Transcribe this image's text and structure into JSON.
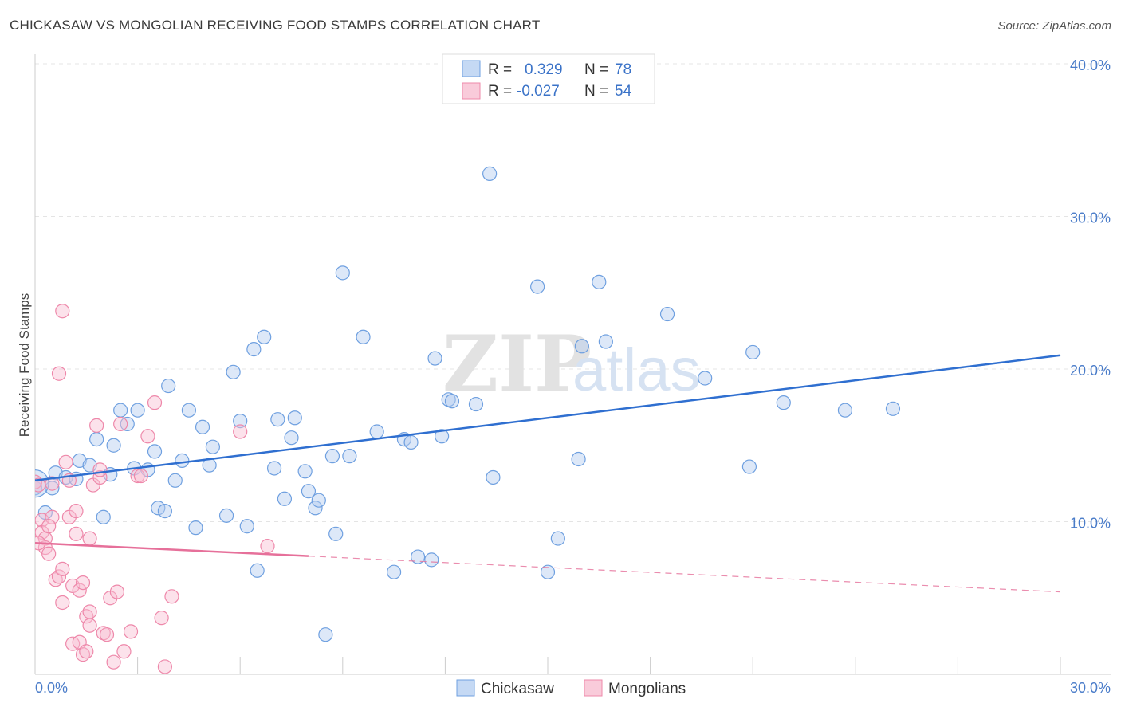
{
  "header": {
    "title": "CHICKASAW VS MONGOLIAN RECEIVING FOOD STAMPS CORRELATION CHART",
    "source": "Source: ZipAtlas.com"
  },
  "watermark": {
    "zip": "ZIP",
    "atlas": "atlas"
  },
  "legend": {
    "r_label": "R =",
    "n_label": "N =",
    "items": [
      {
        "name": "Chickasaw",
        "r": "0.329",
        "n": "78",
        "color": "#6fa0e0"
      },
      {
        "name": "Mongolians",
        "r": "-0.027",
        "n": "54",
        "color": "#ee88aa"
      }
    ]
  },
  "chart_data": {
    "type": "scatter",
    "xlabel": "",
    "ylabel": "Receiving Food Stamps",
    "xlim": [
      0,
      30
    ],
    "ylim": [
      0,
      40
    ],
    "x_tick_labels": [
      {
        "value": 0,
        "label": "0.0%"
      },
      {
        "value": 30,
        "label": "30.0%"
      }
    ],
    "y_tick_labels": [
      {
        "value": 10,
        "label": "10.0%"
      },
      {
        "value": 20,
        "label": "20.0%"
      },
      {
        "value": 30,
        "label": "30.0%"
      },
      {
        "value": 40,
        "label": "40.0%"
      }
    ],
    "grid": true,
    "legend_position": "top-center",
    "series": [
      {
        "name": "Chickasaw",
        "color": "#6fa0e0",
        "trend": {
          "x": [
            0,
            30
          ],
          "y": [
            12.7,
            20.9
          ],
          "dashed_from": null
        },
        "points": [
          [
            0.0,
            12.2
          ],
          [
            0.3,
            10.6
          ],
          [
            0.5,
            12.2
          ],
          [
            0.6,
            13.2
          ],
          [
            0.9,
            12.9
          ],
          [
            1.3,
            14.0
          ],
          [
            1.2,
            12.8
          ],
          [
            1.6,
            13.7
          ],
          [
            1.8,
            15.4
          ],
          [
            2.0,
            10.3
          ],
          [
            2.2,
            13.1
          ],
          [
            2.3,
            15.0
          ],
          [
            2.5,
            17.3
          ],
          [
            2.7,
            16.4
          ],
          [
            2.9,
            13.5
          ],
          [
            3.0,
            17.3
          ],
          [
            3.3,
            13.4
          ],
          [
            3.5,
            14.6
          ],
          [
            3.6,
            10.9
          ],
          [
            3.8,
            10.7
          ],
          [
            3.9,
            18.9
          ],
          [
            4.1,
            12.7
          ],
          [
            4.3,
            14.0
          ],
          [
            4.5,
            17.3
          ],
          [
            4.7,
            9.6
          ],
          [
            4.9,
            16.2
          ],
          [
            5.1,
            13.7
          ],
          [
            5.2,
            14.9
          ],
          [
            5.6,
            10.4
          ],
          [
            5.8,
            19.8
          ],
          [
            6.0,
            16.6
          ],
          [
            6.2,
            9.7
          ],
          [
            6.4,
            21.3
          ],
          [
            6.5,
            6.8
          ],
          [
            6.7,
            22.1
          ],
          [
            7.0,
            13.5
          ],
          [
            7.1,
            16.7
          ],
          [
            7.3,
            11.5
          ],
          [
            7.5,
            15.5
          ],
          [
            7.6,
            16.8
          ],
          [
            7.9,
            13.3
          ],
          [
            8.0,
            12.0
          ],
          [
            8.2,
            10.9
          ],
          [
            8.3,
            11.4
          ],
          [
            8.5,
            2.6
          ],
          [
            8.7,
            14.3
          ],
          [
            8.8,
            9.2
          ],
          [
            9.0,
            26.3
          ],
          [
            9.2,
            14.3
          ],
          [
            9.6,
            22.1
          ],
          [
            10.0,
            15.9
          ],
          [
            10.5,
            6.7
          ],
          [
            10.8,
            15.4
          ],
          [
            11.0,
            15.2
          ],
          [
            11.2,
            7.7
          ],
          [
            11.6,
            7.5
          ],
          [
            11.7,
            20.7
          ],
          [
            11.9,
            15.6
          ],
          [
            12.1,
            18.0
          ],
          [
            12.2,
            17.9
          ],
          [
            12.9,
            17.7
          ],
          [
            13.3,
            32.8
          ],
          [
            13.4,
            12.9
          ],
          [
            14.7,
            25.4
          ],
          [
            15.0,
            6.7
          ],
          [
            15.3,
            8.9
          ],
          [
            15.9,
            14.1
          ],
          [
            16.0,
            21.5
          ],
          [
            16.5,
            25.7
          ],
          [
            16.7,
            21.8
          ],
          [
            18.5,
            23.6
          ],
          [
            19.6,
            19.4
          ],
          [
            20.9,
            13.6
          ],
          [
            21.0,
            21.1
          ],
          [
            21.9,
            17.8
          ],
          [
            23.7,
            17.3
          ],
          [
            25.1,
            17.4
          ],
          [
            0.0,
            12.5
          ]
        ]
      },
      {
        "name": "Mongolians",
        "color": "#ee88aa",
        "trend": {
          "x": [
            0,
            30
          ],
          "y": [
            8.6,
            5.4
          ],
          "dashed_from": 8
        },
        "points": [
          [
            0.0,
            12.6
          ],
          [
            0.1,
            12.4
          ],
          [
            0.2,
            10.1
          ],
          [
            0.2,
            9.3
          ],
          [
            0.3,
            8.9
          ],
          [
            0.3,
            8.3
          ],
          [
            0.4,
            7.9
          ],
          [
            0.5,
            12.5
          ],
          [
            0.5,
            10.3
          ],
          [
            0.4,
            9.7
          ],
          [
            0.6,
            6.2
          ],
          [
            0.7,
            6.4
          ],
          [
            0.8,
            4.7
          ],
          [
            0.8,
            6.9
          ],
          [
            0.7,
            19.7
          ],
          [
            0.8,
            23.8
          ],
          [
            0.9,
            13.9
          ],
          [
            1.0,
            12.7
          ],
          [
            1.0,
            10.3
          ],
          [
            1.1,
            5.8
          ],
          [
            1.1,
            2.0
          ],
          [
            1.2,
            10.7
          ],
          [
            1.2,
            9.2
          ],
          [
            1.3,
            5.5
          ],
          [
            1.4,
            6.0
          ],
          [
            1.5,
            3.8
          ],
          [
            1.6,
            8.9
          ],
          [
            1.6,
            4.1
          ],
          [
            1.7,
            12.4
          ],
          [
            1.3,
            2.1
          ],
          [
            1.4,
            1.3
          ],
          [
            1.5,
            1.5
          ],
          [
            1.6,
            3.2
          ],
          [
            1.8,
            16.3
          ],
          [
            1.9,
            12.9
          ],
          [
            2.0,
            2.7
          ],
          [
            2.1,
            2.6
          ],
          [
            2.2,
            5.0
          ],
          [
            2.4,
            5.4
          ],
          [
            2.5,
            16.4
          ],
          [
            2.6,
            1.5
          ],
          [
            2.3,
            0.8
          ],
          [
            2.8,
            2.8
          ],
          [
            3.0,
            13.0
          ],
          [
            3.1,
            13.0
          ],
          [
            3.3,
            15.6
          ],
          [
            3.5,
            17.8
          ],
          [
            3.7,
            3.7
          ],
          [
            3.8,
            0.5
          ],
          [
            4.0,
            5.1
          ],
          [
            6.0,
            15.9
          ],
          [
            6.8,
            8.4
          ],
          [
            1.9,
            13.4
          ],
          [
            0.1,
            8.6
          ]
        ]
      }
    ]
  }
}
